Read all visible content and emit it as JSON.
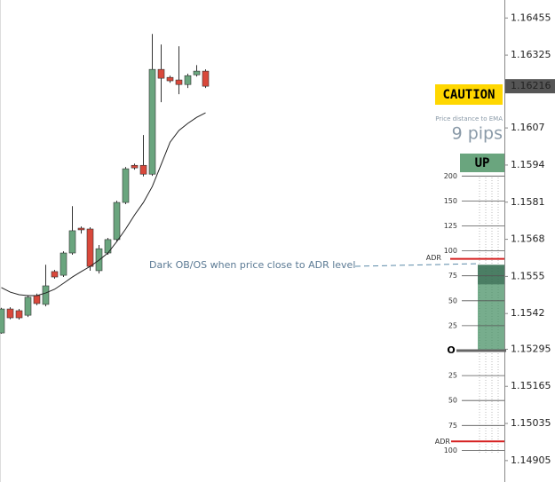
{
  "chart_data": {
    "type": "candlestick",
    "open": [
      1.15352,
      1.15436,
      1.1543,
      1.15414,
      1.15483,
      1.15452,
      1.15567,
      1.15554,
      1.15632,
      1.15719,
      1.15716,
      1.1557,
      1.15632,
      1.15679,
      1.15809,
      1.15939,
      1.15939,
      1.15908,
      1.16275,
      1.16247,
      1.16238,
      1.16222,
      1.16256,
      1.16269
    ],
    "high": [
      1.1544,
      1.15442,
      1.15436,
      1.15483,
      1.1549,
      1.15591,
      1.15573,
      1.15638,
      1.15796,
      1.15725,
      1.15722,
      1.1566,
      1.15685,
      1.15815,
      1.15933,
      1.15945,
      1.16045,
      1.16399,
      1.16362,
      1.16253,
      1.16356,
      1.1626,
      1.1629,
      1.16275
    ],
    "low": [
      1.15349,
      1.154,
      1.15399,
      1.15408,
      1.15449,
      1.15445,
      1.15542,
      1.15548,
      1.15626,
      1.157,
      1.1557,
      1.1556,
      1.15626,
      1.15673,
      1.15803,
      1.15924,
      1.159,
      1.15902,
      1.1616,
      1.16228,
      1.16188,
      1.1621,
      1.1625,
      1.1621
    ],
    "close": [
      1.15436,
      1.15405,
      1.15405,
      1.15477,
      1.15455,
      1.15517,
      1.15548,
      1.15632,
      1.1571,
      1.15713,
      1.15585,
      1.15647,
      1.15679,
      1.15809,
      1.15927,
      1.1593,
      1.15908,
      1.16275,
      1.16244,
      1.16235,
      1.16222,
      1.16253,
      1.16269,
      1.16216
    ],
    "ema": [
      1.15511,
      1.15495,
      1.15486,
      1.15483,
      1.15483,
      1.15492,
      1.15505,
      1.15526,
      1.15548,
      1.15567,
      1.15585,
      1.15607,
      1.15632,
      1.15672,
      1.15716,
      1.15765,
      1.15809,
      1.15865,
      1.15942,
      1.1602,
      1.16061,
      1.16086,
      1.16107,
      1.16123
    ],
    "up_color": "#6aa57e",
    "down_color": "#d9483b",
    "ema_color": "#222222",
    "ylim": [
      1.1483,
      1.16518
    ],
    "yticks": [
      1.16455,
      1.16325,
      1.1607,
      1.1594,
      1.1581,
      1.1568,
      1.1555,
      1.1542,
      1.15295,
      1.15165,
      1.15035,
      1.14905
    ],
    "current_price": 1.16216
  },
  "indicator": {
    "status": "CAUTION",
    "distance_caption": "Price distance to EMA",
    "distance": "9 pips",
    "trend": "UP",
    "upper_ticks": [
      200,
      150,
      125,
      100,
      75,
      50,
      25
    ],
    "zero_label": "O",
    "lower_ticks": [
      25,
      50,
      75,
      100
    ],
    "adr_label": "ADR",
    "adr_upper": 92,
    "adr_lower": 91,
    "gauge": 86,
    "annotation": "Dark OB/OS when price close to ADR level"
  }
}
